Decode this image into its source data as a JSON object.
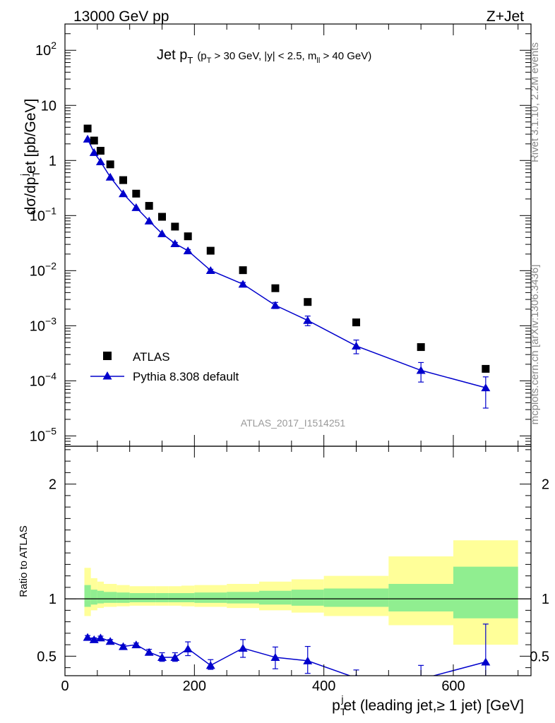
{
  "header": {
    "left": "13000 GeV pp",
    "right": "Z+Jet"
  },
  "side_labels": {
    "rivet": "Rivet 3.1.10,  2.2M events",
    "mcplots": "mcplots.cern.ch [arXiv:1306.3436]"
  },
  "analysis_id": "ATLAS_2017_I1514251",
  "colors": {
    "mc": "#0000cc",
    "band_inner": "#90ee90",
    "band_outer": "#ffff99",
    "data": "#000000"
  },
  "chart_data": [
    {
      "type": "scatter",
      "panel": "main",
      "title": {
        "main": "Jet p",
        "main_sub": "T",
        "open": "(p",
        "open_sub": "T",
        "cut1": " > 30 GeV, |y| < 2.5, m",
        "cut_sub": "ll",
        "cut2": " > 40 GeV)"
      },
      "ylabel": {
        "a": "dσ/dp",
        "sub": "T",
        "sup": "j",
        "b": "et [pb/GeV]"
      },
      "yscale": "log",
      "ylim": [
        6.5e-06,
        300
      ],
      "xlim": [
        0,
        720
      ],
      "y_ticks": [
        {
          "v": 100,
          "base": "10",
          "exp": "2"
        },
        {
          "v": 10,
          "base": "10",
          "exp": ""
        },
        {
          "v": 1,
          "base": "1",
          "exp": ""
        },
        {
          "v": 0.1,
          "base": "10",
          "exp": "−1"
        },
        {
          "v": 0.01,
          "base": "10",
          "exp": "−2"
        },
        {
          "v": 0.001,
          "base": "10",
          "exp": "−3"
        },
        {
          "v": 0.0001,
          "base": "10",
          "exp": "−4"
        },
        {
          "v": 1e-05,
          "base": "10",
          "exp": "−5"
        }
      ],
      "legend_position": "bottom-left",
      "series": [
        {
          "name": "ATLAS",
          "marker": "square",
          "x": [
            35,
            45,
            55,
            70,
            90,
            110,
            130,
            150,
            170,
            190,
            225,
            275,
            325,
            375,
            450,
            550,
            650
          ],
          "y": [
            3.8,
            2.3,
            1.5,
            0.85,
            0.44,
            0.25,
            0.15,
            0.095,
            0.063,
            0.042,
            0.023,
            0.0102,
            0.0048,
            0.0027,
            0.00115,
            0.00041,
            0.000165
          ]
        },
        {
          "name": "Pythia 8.308 default",
          "marker": "triangle",
          "x": [
            35,
            45,
            55,
            70,
            90,
            110,
            130,
            150,
            170,
            190,
            225,
            275,
            325,
            375,
            450,
            550,
            650
          ],
          "y": [
            2.45,
            1.4,
            0.95,
            0.5,
            0.25,
            0.14,
            0.08,
            0.047,
            0.031,
            0.023,
            0.0101,
            0.0057,
            0.00235,
            0.00125,
            0.00043,
            0.000155,
            7.5e-05
          ],
          "err_low": [
            2.4,
            1.37,
            0.93,
            0.49,
            0.245,
            0.137,
            0.078,
            0.045,
            0.0295,
            0.0218,
            0.0096,
            0.0053,
            0.00205,
            0.001,
            0.00031,
            9.5e-05,
            3.2e-05
          ],
          "err_high": [
            2.5,
            1.43,
            0.97,
            0.51,
            0.255,
            0.143,
            0.082,
            0.049,
            0.0325,
            0.0242,
            0.0106,
            0.0061,
            0.00265,
            0.0015,
            0.00055,
            0.000215,
            0.000118
          ]
        }
      ]
    },
    {
      "type": "scatter",
      "panel": "ratio",
      "ylabel": "Ratio to ATLAS",
      "xlabel": {
        "a": "p",
        "sub": "T",
        "sup": "j",
        "b": "et (leading jet,≥ 1 jet) [GeV]"
      },
      "xlim": [
        0,
        720
      ],
      "ylim": [
        0.33,
        2.33
      ],
      "x_ticks": [
        0,
        200,
        400,
        600
      ],
      "y_ticks": [
        0.5,
        1,
        2
      ],
      "bands": [
        {
          "x0": 30,
          "x1": 40,
          "inner": [
            0.93,
            1.12
          ],
          "outer": [
            0.85,
            1.27
          ]
        },
        {
          "x0": 40,
          "x1": 50,
          "inner": [
            0.95,
            1.08
          ],
          "outer": [
            0.9,
            1.18
          ]
        },
        {
          "x0": 50,
          "x1": 60,
          "inner": [
            0.96,
            1.07
          ],
          "outer": [
            0.92,
            1.15
          ]
        },
        {
          "x0": 60,
          "x1": 80,
          "inner": [
            0.965,
            1.06
          ],
          "outer": [
            0.93,
            1.13
          ]
        },
        {
          "x0": 80,
          "x1": 100,
          "inner": [
            0.965,
            1.055
          ],
          "outer": [
            0.935,
            1.12
          ]
        },
        {
          "x0": 100,
          "x1": 120,
          "inner": [
            0.97,
            1.05
          ],
          "outer": [
            0.94,
            1.11
          ]
        },
        {
          "x0": 120,
          "x1": 140,
          "inner": [
            0.97,
            1.05
          ],
          "outer": [
            0.94,
            1.11
          ]
        },
        {
          "x0": 140,
          "x1": 160,
          "inner": [
            0.97,
            1.05
          ],
          "outer": [
            0.94,
            1.11
          ]
        },
        {
          "x0": 160,
          "x1": 180,
          "inner": [
            0.97,
            1.05
          ],
          "outer": [
            0.94,
            1.11
          ]
        },
        {
          "x0": 180,
          "x1": 200,
          "inner": [
            0.97,
            1.05
          ],
          "outer": [
            0.935,
            1.115
          ]
        },
        {
          "x0": 200,
          "x1": 250,
          "inner": [
            0.965,
            1.055
          ],
          "outer": [
            0.93,
            1.12
          ]
        },
        {
          "x0": 250,
          "x1": 300,
          "inner": [
            0.96,
            1.06
          ],
          "outer": [
            0.92,
            1.13
          ]
        },
        {
          "x0": 300,
          "x1": 350,
          "inner": [
            0.95,
            1.07
          ],
          "outer": [
            0.9,
            1.15
          ]
        },
        {
          "x0": 350,
          "x1": 400,
          "inner": [
            0.94,
            1.08
          ],
          "outer": [
            0.88,
            1.17
          ]
        },
        {
          "x0": 400,
          "x1": 500,
          "inner": [
            0.93,
            1.09
          ],
          "outer": [
            0.85,
            1.2
          ]
        },
        {
          "x0": 500,
          "x1": 600,
          "inner": [
            0.89,
            1.13
          ],
          "outer": [
            0.77,
            1.37
          ]
        },
        {
          "x0": 600,
          "x1": 700,
          "inner": [
            0.83,
            1.28
          ],
          "outer": [
            0.6,
            1.51
          ]
        }
      ],
      "series": [
        {
          "name": "Pythia 8.308 default",
          "marker": "triangle",
          "x": [
            35,
            45,
            55,
            70,
            90,
            110,
            130,
            150,
            170,
            190,
            225,
            275,
            325,
            375,
            450,
            550,
            650
          ],
          "y": [
            0.665,
            0.645,
            0.66,
            0.63,
            0.585,
            0.6,
            0.535,
            0.49,
            0.49,
            0.565,
            0.42,
            0.57,
            0.49,
            0.46,
            0.31,
            0.3,
            0.45
          ],
          "err_low": [
            0.65,
            0.63,
            0.645,
            0.615,
            0.57,
            0.585,
            0.51,
            0.455,
            0.455,
            0.505,
            0.385,
            0.49,
            0.39,
            0.35,
            0.24,
            0.18,
            0.19
          ],
          "err_high": [
            0.68,
            0.66,
            0.675,
            0.645,
            0.6,
            0.615,
            0.56,
            0.53,
            0.53,
            0.625,
            0.47,
            0.645,
            0.58,
            0.585,
            0.38,
            0.42,
            0.78
          ]
        }
      ]
    }
  ]
}
